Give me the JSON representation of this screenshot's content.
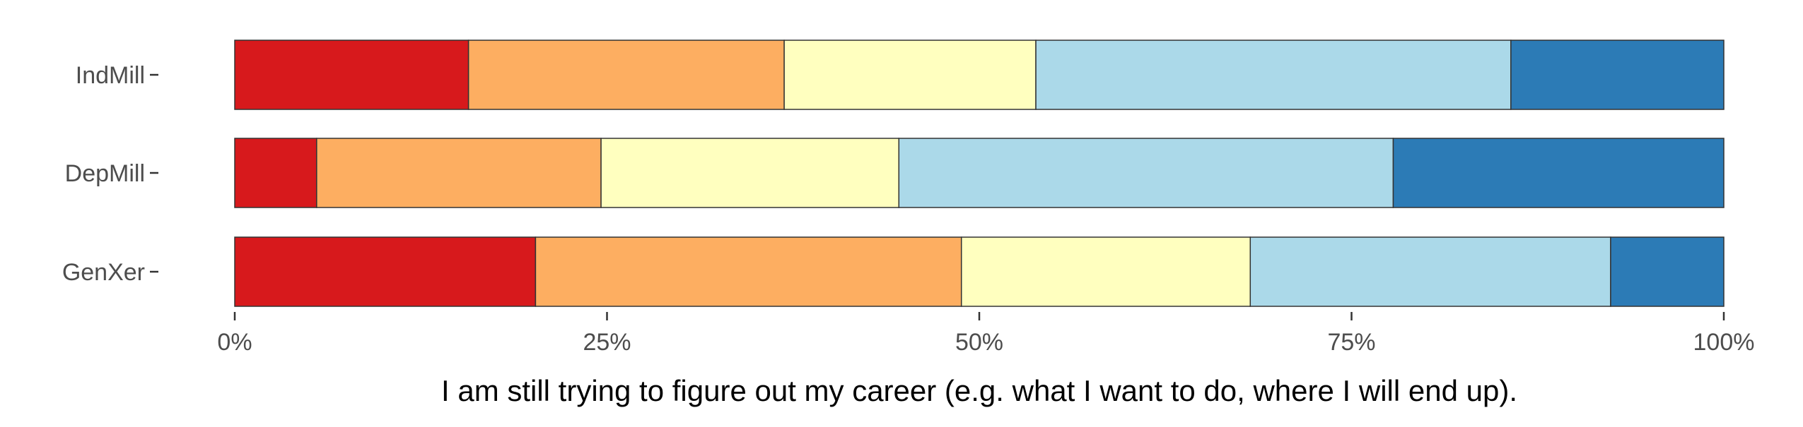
{
  "chart_data": {
    "type": "bar",
    "orientation": "horizontal",
    "stacked": true,
    "normalized": true,
    "title": "",
    "xlabel": "I am still trying to figure out my career (e.g. what I want to do, where I will end up).",
    "ylabel": "",
    "xlim": [
      0,
      100
    ],
    "x_ticks": [
      "0%",
      "25%",
      "50%",
      "75%",
      "100%"
    ],
    "x_tick_values": [
      0,
      25,
      50,
      75,
      100
    ],
    "categories": [
      "IndMill",
      "DepMill",
      "GenXer"
    ],
    "grid": false,
    "legend": "none",
    "series": [
      {
        "color": "#d7191c",
        "values": [
          15.7,
          5.5,
          20.2
        ]
      },
      {
        "color": "#fdae61",
        "values": [
          21.2,
          19.1,
          28.6
        ]
      },
      {
        "color": "#ffffbf",
        "values": [
          16.9,
          20.0,
          19.4
        ]
      },
      {
        "color": "#abd9e9",
        "values": [
          31.9,
          33.2,
          24.2
        ]
      },
      {
        "color": "#2c7bb6",
        "values": [
          14.3,
          22.2,
          7.6
        ]
      }
    ]
  }
}
